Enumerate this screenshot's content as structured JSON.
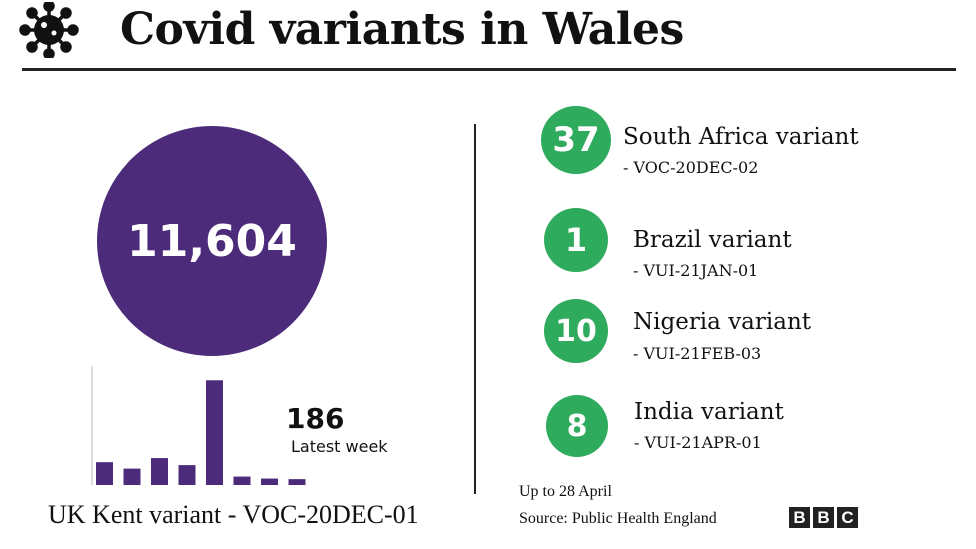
{
  "header": {
    "title": "Covid variants in Wales",
    "icon": "virus-icon"
  },
  "kent": {
    "total": "11,604",
    "label": "UK Kent variant - VOC-20DEC-01",
    "latest_value": "186",
    "latest_label": "Latest week",
    "color": "#4b2b7a"
  },
  "variants": [
    {
      "count": "37",
      "name": "South Africa variant",
      "code": "- VOC-20DEC-02"
    },
    {
      "count": "1",
      "name": "Brazil variant",
      "code": "- VUI-21JAN-01"
    },
    {
      "count": "10",
      "name": "Nigeria variant",
      "code": "- VUI-21FEB-03"
    },
    {
      "count": "8",
      "name": "India variant",
      "code": "- VUI-21APR-01"
    }
  ],
  "footer": {
    "date_note": "Up to 28 April",
    "source": "Source: Public Health England",
    "logo": [
      "B",
      "B",
      "C"
    ]
  },
  "chart_data": {
    "type": "bar",
    "title": "",
    "xlabel": "",
    "ylabel": "",
    "categories": [
      "1",
      "2",
      "3",
      "4",
      "5",
      "6",
      "7",
      "8"
    ],
    "values": [
      195,
      140,
      230,
      170,
      895,
      72,
      55,
      50
    ],
    "ylim": [
      0,
      1000
    ],
    "grid": false,
    "color": "#4b2b7a"
  }
}
